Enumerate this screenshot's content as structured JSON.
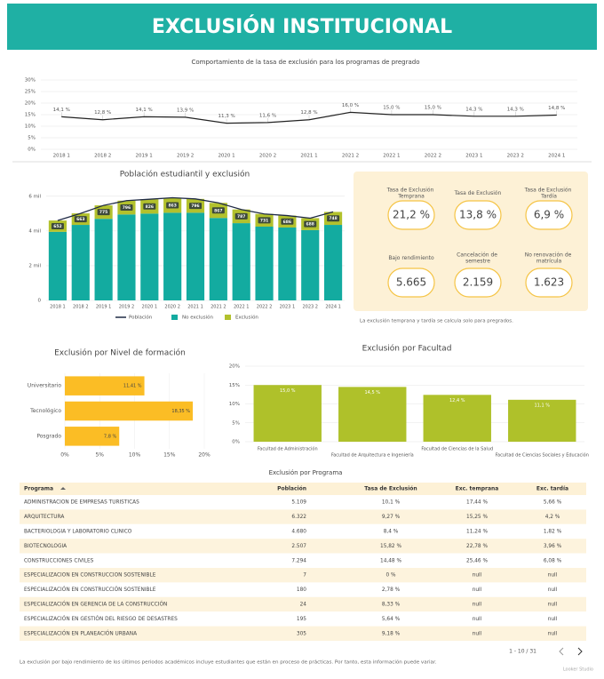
{
  "header": {
    "title": "EXCLUSIÓN INSTITUCIONAL"
  },
  "chart_data": [
    {
      "type": "line",
      "title": "Comportamiento de la tasa de exclusión para los programas de pregrado",
      "categories": [
        "2018 1",
        "2018 2",
        "2019 1",
        "2019 2",
        "2020 1",
        "2020 2",
        "2021 1",
        "2021 2",
        "2022 1",
        "2022 2",
        "2023 1",
        "2023 2",
        "2024 1"
      ],
      "values": [
        14.1,
        12.8,
        14.1,
        13.9,
        11.3,
        11.6,
        12.8,
        16.0,
        15.0,
        15.0,
        14.3,
        14.3,
        14.8
      ],
      "value_labels": [
        "14,1 %",
        "12,8 %",
        "14,1 %",
        "13,9 %",
        "11,3 %",
        "11,6 %",
        "12,8 %",
        "16,0 %",
        "15,0 %",
        "15,0 %",
        "14,3 %",
        "14,3 %",
        "14,8 %"
      ],
      "color": "#222222",
      "ylim": [
        0,
        30
      ],
      "yticks": [
        {
          "value": 0,
          "label": "0%"
        },
        {
          "value": 5,
          "label": "5%"
        },
        {
          "value": 10,
          "label": "10%"
        },
        {
          "value": 15,
          "label": "15%"
        },
        {
          "value": 20,
          "label": "20%"
        },
        {
          "value": 25,
          "label": "25%"
        },
        {
          "value": 30,
          "label": "30%"
        }
      ],
      "grid": true
    },
    {
      "type": "combo",
      "title": "Población estudiantil y exclusión",
      "stacked": true,
      "categories": [
        "2018 1",
        "2018 2",
        "2019 1",
        "2019 2",
        "2020 1",
        "2020 2",
        "2021 1",
        "2021 2",
        "2022 1",
        "2022 2",
        "2023 1",
        "2023 2",
        "2024 1"
      ],
      "series": [
        {
          "name": "Población",
          "type": "line",
          "color": "#1f2a44",
          "values": [
            4602,
            5013,
            5475,
            5746,
            5826,
            5913,
            5846,
            5617,
            5237,
            4981,
            4886,
            4738,
            5098
          ]
        },
        {
          "name": "No exclusión",
          "type": "bar",
          "color": "#13aba0",
          "values": [
            3950,
            4350,
            4700,
            4950,
            5000,
            5050,
            5050,
            4750,
            4450,
            4250,
            4200,
            4050,
            4350
          ]
        },
        {
          "name": "Exclusión",
          "type": "bar",
          "color": "#b2c12d",
          "values": [
            652,
            663,
            775,
            796,
            826,
            863,
            796,
            867,
            787,
            731,
            686,
            688,
            748
          ],
          "show_labels": true
        }
      ],
      "ylim": [
        0,
        6400
      ],
      "yticks": [
        0,
        {
          "value": 2000,
          "label": "2 mil"
        },
        {
          "value": 4000,
          "label": "4 mil"
        },
        {
          "value": 6000,
          "label": "6 mil"
        }
      ],
      "grid": true,
      "legend": "bottom"
    },
    {
      "type": "bar",
      "orientation": "horizontal",
      "title": "Exclusión por Nivel de formación",
      "categories": [
        "Universitario",
        "Tecnológico",
        "Posgrado"
      ],
      "values": [
        11.41,
        18.35,
        7.8
      ],
      "value_labels": [
        "11,41 %",
        "18,35 %",
        "7,8 %"
      ],
      "color": "#fbbd25",
      "xlim": [
        0,
        20
      ],
      "xticks": [
        {
          "value": 0,
          "label": "0%"
        },
        {
          "value": 5,
          "label": "5%"
        },
        {
          "value": 10,
          "label": "10%"
        },
        {
          "value": 15,
          "label": "15%"
        },
        {
          "value": 20,
          "label": "20%"
        }
      ],
      "grid": true
    },
    {
      "type": "bar",
      "orientation": "vertical",
      "title": "Exclusión por Facultad",
      "categories": [
        "Facultad de Administración",
        "Facultad de Arquitectura e Ingeniería",
        "Facultad de Ciencias de la Salud",
        "Facultad de Ciencias Sociales y Educación"
      ],
      "values": [
        15.0,
        14.5,
        12.4,
        11.1
      ],
      "value_labels": [
        "15,0 %",
        "14,5 %",
        "12,4 %",
        "11,1 %"
      ],
      "color": "#afc12a",
      "ylim": [
        0,
        20
      ],
      "yticks": [
        {
          "value": 0,
          "label": "0%"
        },
        {
          "value": 5,
          "label": "5%"
        },
        {
          "value": 10,
          "label": "10%"
        },
        {
          "value": 15,
          "label": "15%"
        },
        {
          "value": 20,
          "label": "20%"
        }
      ],
      "grid": true
    }
  ],
  "kpis": [
    {
      "label": "Tasa de Exclusión Temprana",
      "value": "21,2 %"
    },
    {
      "label": "Tasa de Exclusión",
      "value": "13,8 %"
    },
    {
      "label": "Tasa de Exclusión Tardía",
      "value": "6,9 %"
    },
    {
      "label": "Bajo rendimiento",
      "value": "5.665"
    },
    {
      "label": "Cancelación de semestre",
      "value": "2.159"
    },
    {
      "label": "No renovación de matrícula",
      "value": "1.623"
    }
  ],
  "kpi_note": "La exclusión temprana y tardía se calcula solo para pregrados.",
  "table": {
    "title": "Exclusión por Programa",
    "columns": [
      "Programa",
      "Población",
      "Tasa de Exclusión",
      "Exc. temprana",
      "Exc. tardía"
    ],
    "rows": [
      [
        "ADMINISTRACION DE EMPRESAS TURISTICAS",
        "5.109",
        "10,1 %",
        "17,44 %",
        "5,66 %"
      ],
      [
        "ARQUITECTURA",
        "6.322",
        "9,27 %",
        "15,25 %",
        "4,2 %"
      ],
      [
        "BACTERIOLOGIA Y LABORATORIO CLINICO",
        "4.680",
        "8,4 %",
        "11,24 %",
        "1,82 %"
      ],
      [
        "BIOTECNOLOGIA",
        "2.507",
        "15,82 %",
        "22,78 %",
        "3,96 %"
      ],
      [
        "CONSTRUCCIONES CIVILES",
        "7.294",
        "14,48 %",
        "25,46 %",
        "6,08 %"
      ],
      [
        "ESPECIALIZACION EN CONSTRUCCION SOSTENIBLE",
        "7",
        "0 %",
        "null",
        "null"
      ],
      [
        "ESPECIALIZACIÓN EN CONSTRUCCIÓN SOSTENIBLE",
        "180",
        "2,78 %",
        "null",
        "null"
      ],
      [
        "ESPECIALIZACIÓN EN GERENCIA DE LA CONSTRUCCIÓN",
        "24",
        "8,33 %",
        "null",
        "null"
      ],
      [
        "ESPECIALIZACIÓN EN GESTIÓN DEL RIESGO DE DESASTRES",
        "195",
        "5,64 %",
        "null",
        "null"
      ],
      [
        "ESPECIALIZACIÓN EN PLANEACIÓN URBANA",
        "305",
        "9,18 %",
        "null",
        "null"
      ]
    ],
    "pagination": "1 - 10 / 31"
  },
  "footnote": "La exclusión por bajo rendimiento de los últimos periodos académicos incluye estudiantes que están en proceso de prácticas. Por tanto, esta información puede variar.",
  "branding": "Looker Studio"
}
